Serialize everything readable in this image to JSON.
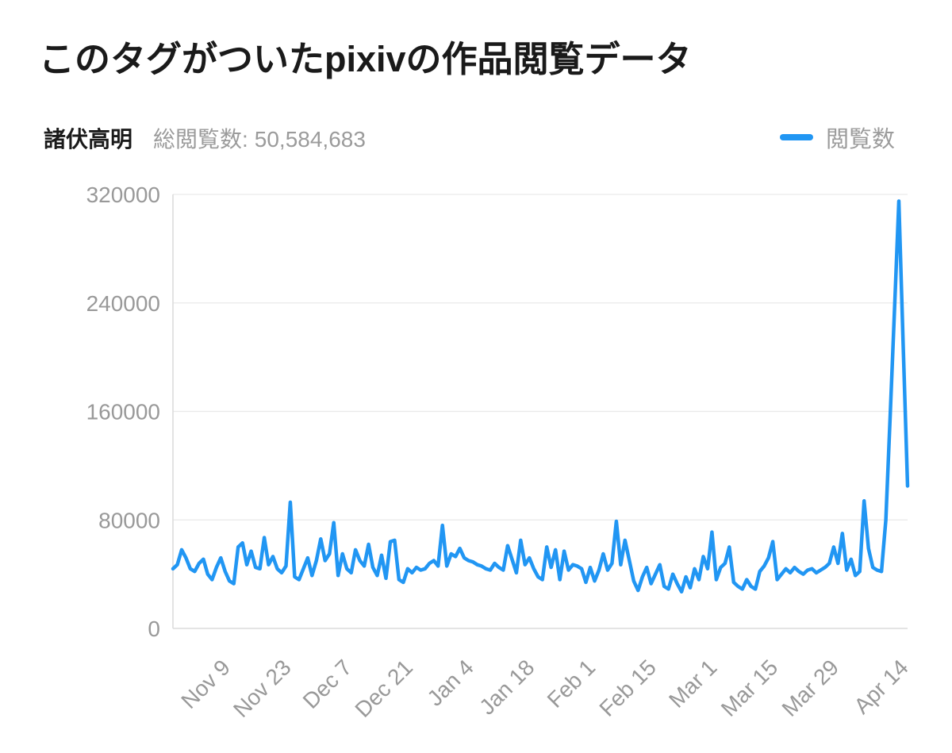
{
  "page_title": "このタグがついたpixivの作品閲覧データ",
  "header": {
    "tag_name": "諸伏高明",
    "total_views_label": "総閲覧数:",
    "total_views_value": "50,584,683",
    "legend_label": "閲覧数"
  },
  "colors": {
    "line": "#2196F3",
    "grid": "#e9e9e9",
    "axis": "#dcdcdc",
    "tick_text": "#999999",
    "muted_text": "#9b9b9b",
    "title_text": "#1a1a1a",
    "background": "#ffffff"
  },
  "chart_data": {
    "type": "line",
    "title": "このタグがついたpixivの作品閲覧データ",
    "cadence": "daily",
    "legend_position": "top-right",
    "grid": "horizontal-only",
    "ylim": [
      0,
      320000
    ],
    "y_ticks": [
      0,
      80000,
      160000,
      240000,
      320000
    ],
    "x_tick_labels": [
      "Nov 9",
      "Nov 23",
      "Dec 7",
      "Dec 21",
      "Jan 4",
      "Jan 18",
      "Feb 1",
      "Feb 15",
      "Mar 1",
      "Mar 15",
      "Mar 29",
      "Apr 14"
    ],
    "x_tick_indices": [
      12,
      26,
      40,
      54,
      68,
      82,
      96,
      110,
      124,
      138,
      152,
      168
    ],
    "series": [
      {
        "name": "閲覧数",
        "values": [
          44000,
          47000,
          58000,
          52000,
          44000,
          42000,
          48000,
          51000,
          40000,
          36000,
          45000,
          52000,
          42000,
          35000,
          33000,
          60000,
          63000,
          47000,
          57000,
          45000,
          44000,
          67000,
          47000,
          53000,
          44000,
          41000,
          46000,
          93000,
          38000,
          36000,
          44000,
          52000,
          39000,
          50000,
          66000,
          50000,
          55000,
          78000,
          39000,
          55000,
          44000,
          41000,
          58000,
          50000,
          46000,
          62000,
          45000,
          39000,
          54000,
          37000,
          64000,
          65000,
          36000,
          34000,
          44000,
          41000,
          45000,
          43000,
          44000,
          48000,
          50000,
          46000,
          76000,
          46000,
          55000,
          53000,
          59000,
          52000,
          50000,
          49000,
          47000,
          46000,
          44000,
          43000,
          48000,
          45000,
          43000,
          61000,
          51000,
          41000,
          65000,
          47000,
          52000,
          44000,
          38000,
          36000,
          60000,
          45000,
          58000,
          36000,
          57000,
          43000,
          47000,
          46000,
          44000,
          34000,
          45000,
          35000,
          43000,
          55000,
          43000,
          48000,
          79000,
          47000,
          65000,
          50000,
          35000,
          28000,
          38000,
          45000,
          33000,
          40000,
          47000,
          31000,
          29000,
          40000,
          33000,
          27000,
          38000,
          30000,
          44000,
          36000,
          53000,
          44000,
          71000,
          36000,
          45000,
          48000,
          60000,
          34000,
          31000,
          29000,
          36000,
          31000,
          29000,
          42000,
          46000,
          52000,
          64000,
          36000,
          40000,
          44000,
          41000,
          45000,
          42000,
          40000,
          43000,
          44000,
          41000,
          43000,
          45000,
          48000,
          60000,
          48000,
          70000,
          43000,
          51000,
          39000,
          42000,
          94000,
          59000,
          45000,
          43000,
          42000,
          80000,
          157000,
          236000,
          315000,
          208000,
          105000
        ]
      }
    ]
  }
}
